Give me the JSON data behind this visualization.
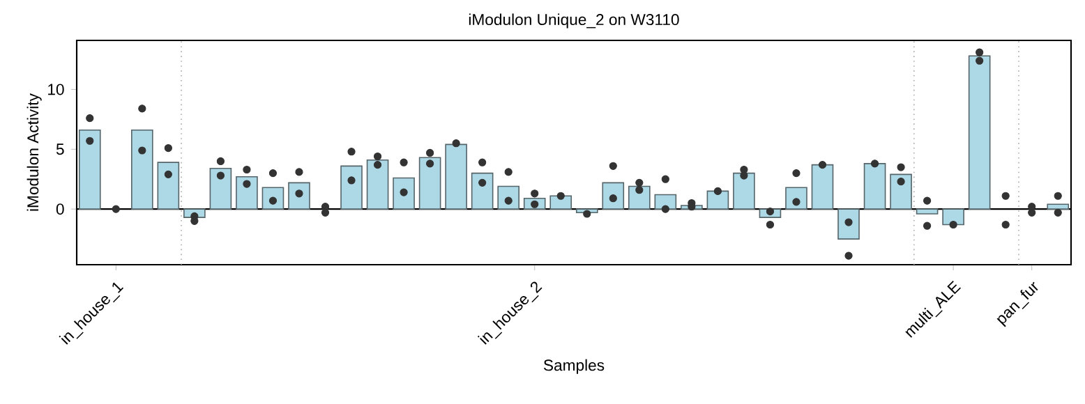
{
  "chart_data": {
    "type": "bar",
    "title": "iModulon Unique_2 on W3110",
    "xlabel": "Samples",
    "ylabel": "iModulon Activity",
    "ylim": [
      -4.65,
      14.1
    ],
    "yticks": [
      0,
      5,
      10
    ],
    "categories": [
      null,
      "in_house_1",
      null,
      null,
      null,
      null,
      null,
      null,
      null,
      null,
      null,
      null,
      null,
      null,
      null,
      null,
      null,
      "in_house_2",
      null,
      null,
      null,
      null,
      null,
      null,
      null,
      null,
      null,
      null,
      null,
      null,
      null,
      null,
      null,
      "multi_ALE",
      null,
      null,
      "pan_fur",
      null
    ],
    "series": [
      {
        "color": "#add8e6",
        "values": [
          6.6,
          null,
          6.6,
          3.9,
          -0.7,
          3.4,
          2.7,
          1.8,
          2.2,
          null,
          3.6,
          4.1,
          2.6,
          4.3,
          5.4,
          3.0,
          1.9,
          0.9,
          1.1,
          -0.3,
          2.2,
          1.9,
          1.2,
          0.3,
          1.5,
          3.0,
          -0.7,
          1.8,
          3.7,
          -2.5,
          3.8,
          2.9,
          -0.4,
          -1.3,
          12.8,
          null,
          null,
          0.4
        ]
      },
      {
        "type": "scatter",
        "color": "#333333",
        "values": [
          7.6,
          0,
          8.4,
          5.1,
          -0.6,
          4.0,
          3.3,
          3.0,
          3.1,
          0.2,
          4.8,
          4.4,
          3.9,
          4.7,
          5.5,
          3.9,
          3.1,
          1.3,
          1.1,
          -0.4,
          3.6,
          2.2,
          2.5,
          0.5,
          1.5,
          3.3,
          -0.2,
          3.0,
          3.7,
          -1.1,
          3.8,
          3.5,
          0.7,
          -1.3,
          13.1,
          1.1,
          0.2,
          1.1
        ]
      },
      {
        "type": "scatter",
        "color": "#333333",
        "values": [
          5.7,
          null,
          4.9,
          2.9,
          -1.0,
          2.8,
          2.1,
          0.7,
          1.3,
          -0.3,
          2.4,
          3.7,
          1.4,
          3.8,
          null,
          2.2,
          0.7,
          0.4,
          null,
          null,
          0.9,
          1.6,
          0,
          0.2,
          null,
          2.8,
          -1.3,
          0.6,
          null,
          -3.9,
          null,
          2.3,
          -1.4,
          null,
          12.4,
          -1.3,
          -0.3,
          -0.3
        ]
      }
    ],
    "ref_lines": [
      {
        "axis": "y",
        "value": 0,
        "color": "#000000",
        "line_style": "solid"
      }
    ]
  }
}
